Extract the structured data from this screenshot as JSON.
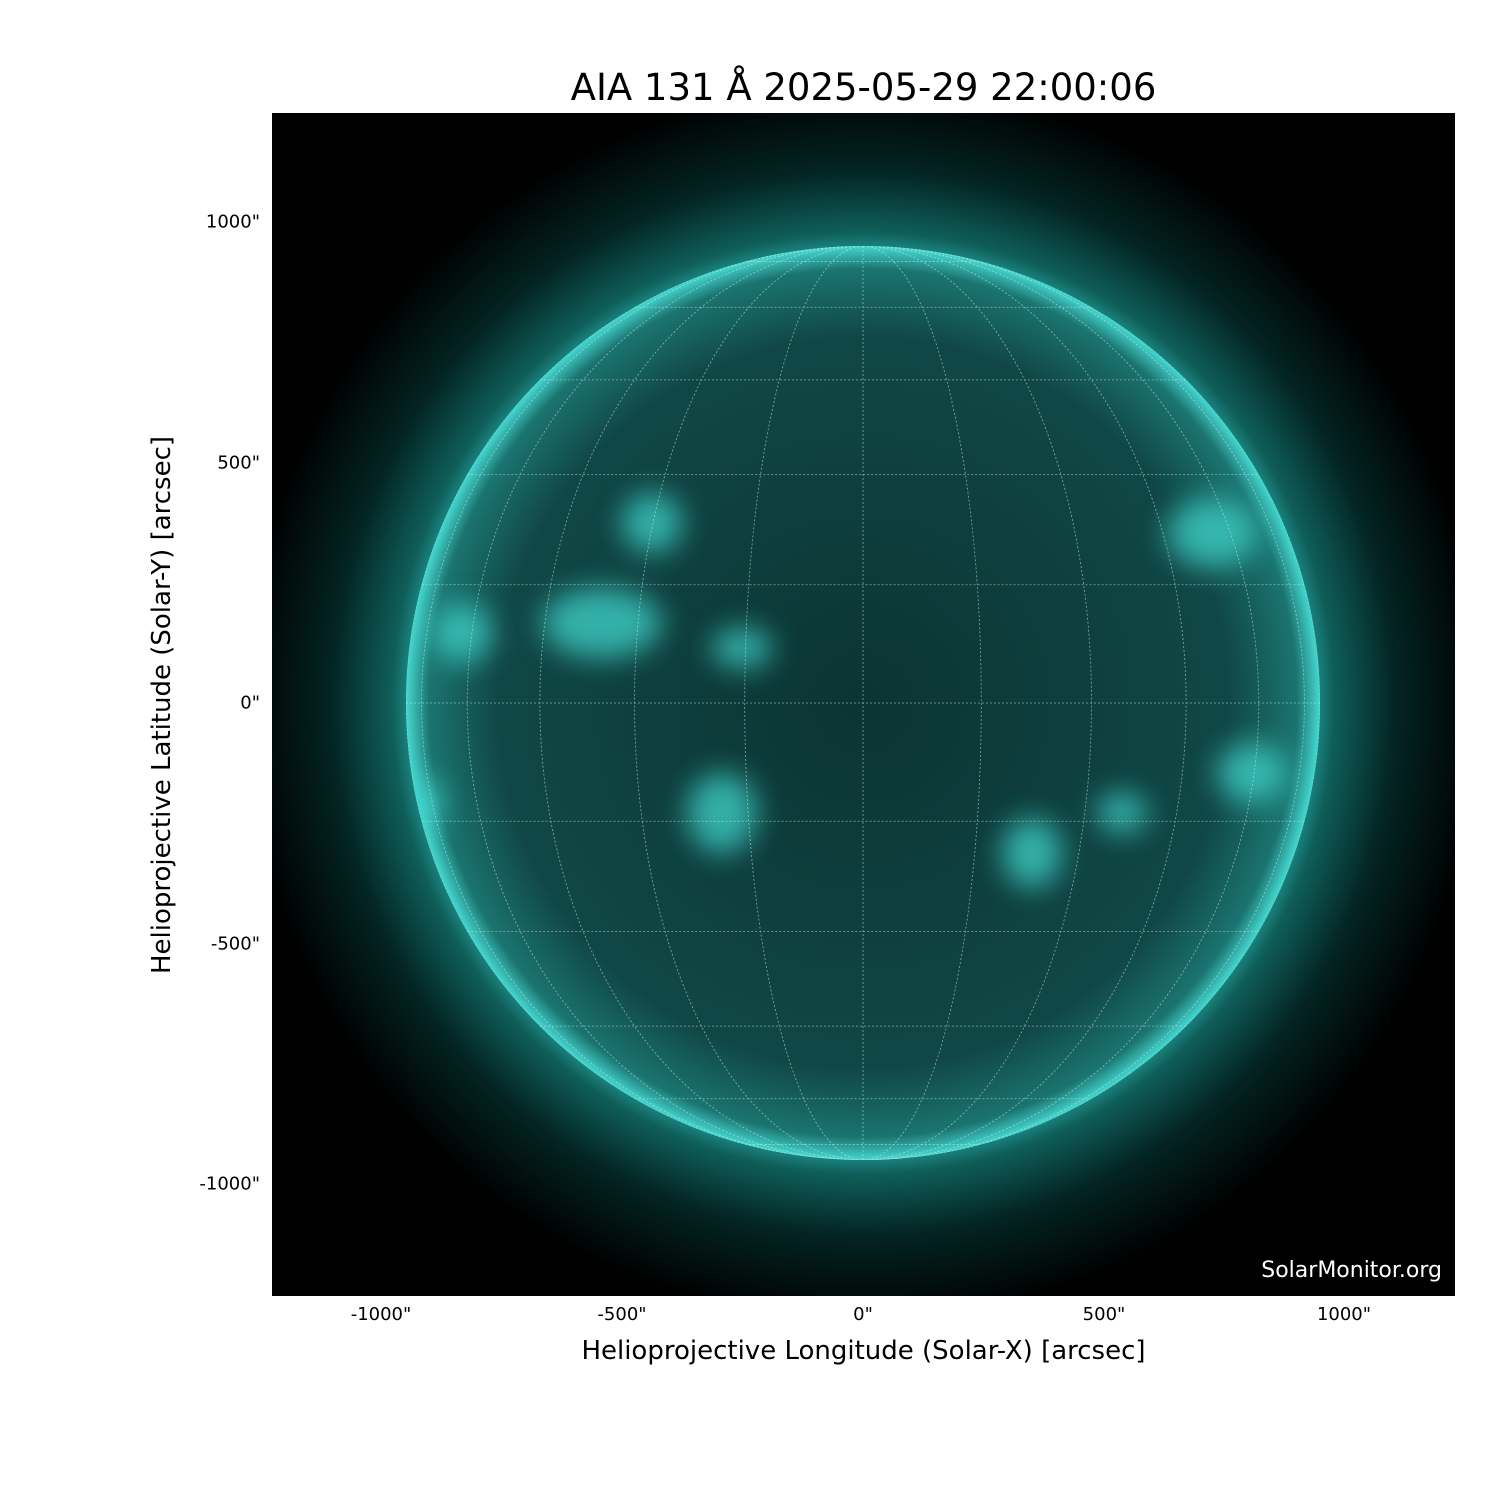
{
  "title": "AIA 131 Å 2025-05-29 22:00:06",
  "xlabel": "Helioprojective Longitude (Solar-X) [arcsec]",
  "ylabel": "Helioprojective Latitude (Solar-Y) [arcsec]",
  "x_ticks": [
    "-1000\"",
    "-500\"",
    "0\"",
    "500\"",
    "1000\""
  ],
  "y_ticks": [
    "1000\"",
    "500\"",
    "0\"",
    "-500\"",
    "-1000\""
  ],
  "watermark": "SolarMonitor.org",
  "colors": {
    "disk": "#0e4a48",
    "limb": "#3fe0d8",
    "background": "#000000"
  },
  "image": {
    "instrument": "AIA",
    "wavelength": "131 Å",
    "grid_spacing_deg": 15
  }
}
